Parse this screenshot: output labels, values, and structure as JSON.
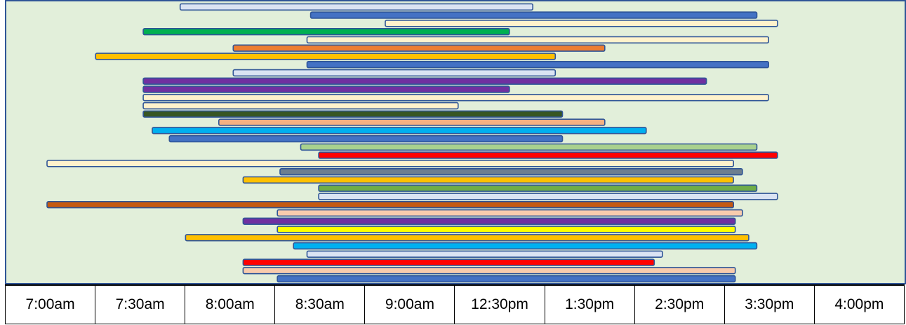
{
  "chart_data": {
    "type": "bar",
    "orientation": "horizontal-range",
    "title": "",
    "xlabel": "",
    "ylabel": "",
    "tick_labels": [
      "7:00am",
      "7:30am",
      "8:00am",
      "8:30am",
      "9:00am",
      "12:30pm",
      "1:30pm",
      "2:30pm",
      "3:30pm",
      "4:00pm"
    ],
    "x_units": "column index (0 = 7:00am column start, 10 = 4:00pm column end)",
    "xlim": [
      0,
      10
    ],
    "grid": false,
    "background": "#e2efda",
    "outline": "#2f5597",
    "bars": [
      {
        "start": 1.94,
        "end": 5.86,
        "color": "#dae3f3"
      },
      {
        "start": 3.39,
        "end": 8.35,
        "color": "#4472c4"
      },
      {
        "start": 4.22,
        "end": 8.58,
        "color": "#fff2cc"
      },
      {
        "start": 1.53,
        "end": 5.6,
        "color": "#00b050"
      },
      {
        "start": 3.35,
        "end": 8.48,
        "color": "#fff2cc"
      },
      {
        "start": 2.53,
        "end": 6.66,
        "color": "#ed7d31"
      },
      {
        "start": 1.0,
        "end": 6.11,
        "color": "#ffc000"
      },
      {
        "start": 3.35,
        "end": 8.48,
        "color": "#4472c4"
      },
      {
        "start": 2.53,
        "end": 6.11,
        "color": "#dae3f3"
      },
      {
        "start": 1.53,
        "end": 7.79,
        "color": "#7030a0"
      },
      {
        "start": 1.53,
        "end": 5.6,
        "color": "#7030a0"
      },
      {
        "start": 1.53,
        "end": 8.48,
        "color": "#fff2cc"
      },
      {
        "start": 1.53,
        "end": 5.03,
        "color": "#fff2cc"
      },
      {
        "start": 1.53,
        "end": 6.19,
        "color": "#375623"
      },
      {
        "start": 2.37,
        "end": 6.66,
        "color": "#f4b183"
      },
      {
        "start": 1.63,
        "end": 7.12,
        "color": "#00b0f0"
      },
      {
        "start": 1.82,
        "end": 6.19,
        "color": "#4472c4"
      },
      {
        "start": 3.28,
        "end": 8.35,
        "color": "#a9d18e"
      },
      {
        "start": 3.48,
        "end": 8.58,
        "color": "#ff0000"
      },
      {
        "start": 0.46,
        "end": 8.09,
        "color": "#fff2cc"
      },
      {
        "start": 3.05,
        "end": 8.19,
        "color": "#6d7f8f"
      },
      {
        "start": 2.64,
        "end": 8.09,
        "color": "#ffc000"
      },
      {
        "start": 3.48,
        "end": 8.35,
        "color": "#70ad47"
      },
      {
        "start": 3.48,
        "end": 8.58,
        "color": "#dae3f3"
      },
      {
        "start": 0.46,
        "end": 8.09,
        "color": "#c55a11"
      },
      {
        "start": 3.02,
        "end": 8.19,
        "color": "#f8cbad"
      },
      {
        "start": 2.64,
        "end": 8.11,
        "color": "#7030a0"
      },
      {
        "start": 3.02,
        "end": 8.11,
        "color": "#ffff00"
      },
      {
        "start": 2.0,
        "end": 8.26,
        "color": "#ffc000"
      },
      {
        "start": 3.2,
        "end": 8.35,
        "color": "#00b0f0"
      },
      {
        "start": 3.35,
        "end": 7.3,
        "color": "#dae3f3"
      },
      {
        "start": 2.64,
        "end": 7.21,
        "color": "#ff0000"
      },
      {
        "start": 2.64,
        "end": 8.11,
        "color": "#f8cbad"
      },
      {
        "start": 3.02,
        "end": 8.11,
        "color": "#4472c4"
      }
    ]
  }
}
